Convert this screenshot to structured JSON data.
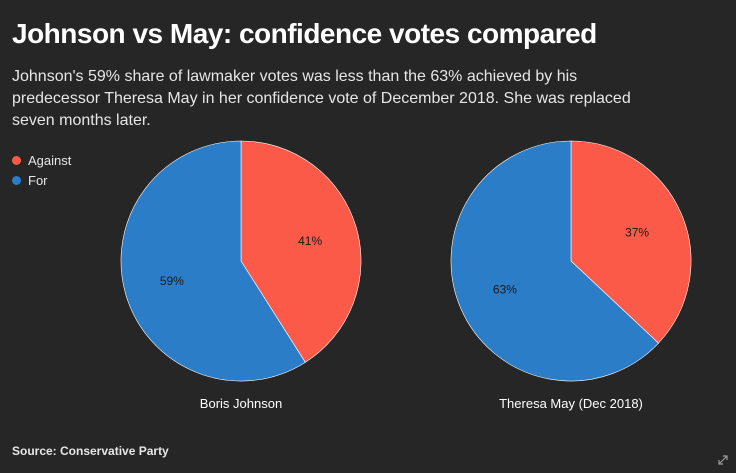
{
  "title": "Johnson vs May: confidence votes compared",
  "subtitle": "Johnson's 59% share of lawmaker votes was less than the 63% achieved by his predecessor Theresa May in her confidence vote of December 2018. She was replaced seven months later.",
  "source": "Source: Conservative Party",
  "colors": {
    "against": "#fc5a48",
    "for": "#2b7dc8",
    "background": "#262626"
  },
  "legend": [
    {
      "label": "Against",
      "color": "#fc5a48"
    },
    {
      "label": "For",
      "color": "#2b7dc8"
    }
  ],
  "chart_data": [
    {
      "type": "pie",
      "title": "Boris Johnson",
      "slices": [
        {
          "label": "Against",
          "value": 41,
          "display": "41%"
        },
        {
          "label": "For",
          "value": 59,
          "display": "59%"
        }
      ]
    },
    {
      "type": "pie",
      "title": "Theresa May (Dec 2018)",
      "slices": [
        {
          "label": "Against",
          "value": 37,
          "display": "37%"
        },
        {
          "label": "For",
          "value": 63,
          "display": "63%"
        }
      ]
    }
  ]
}
